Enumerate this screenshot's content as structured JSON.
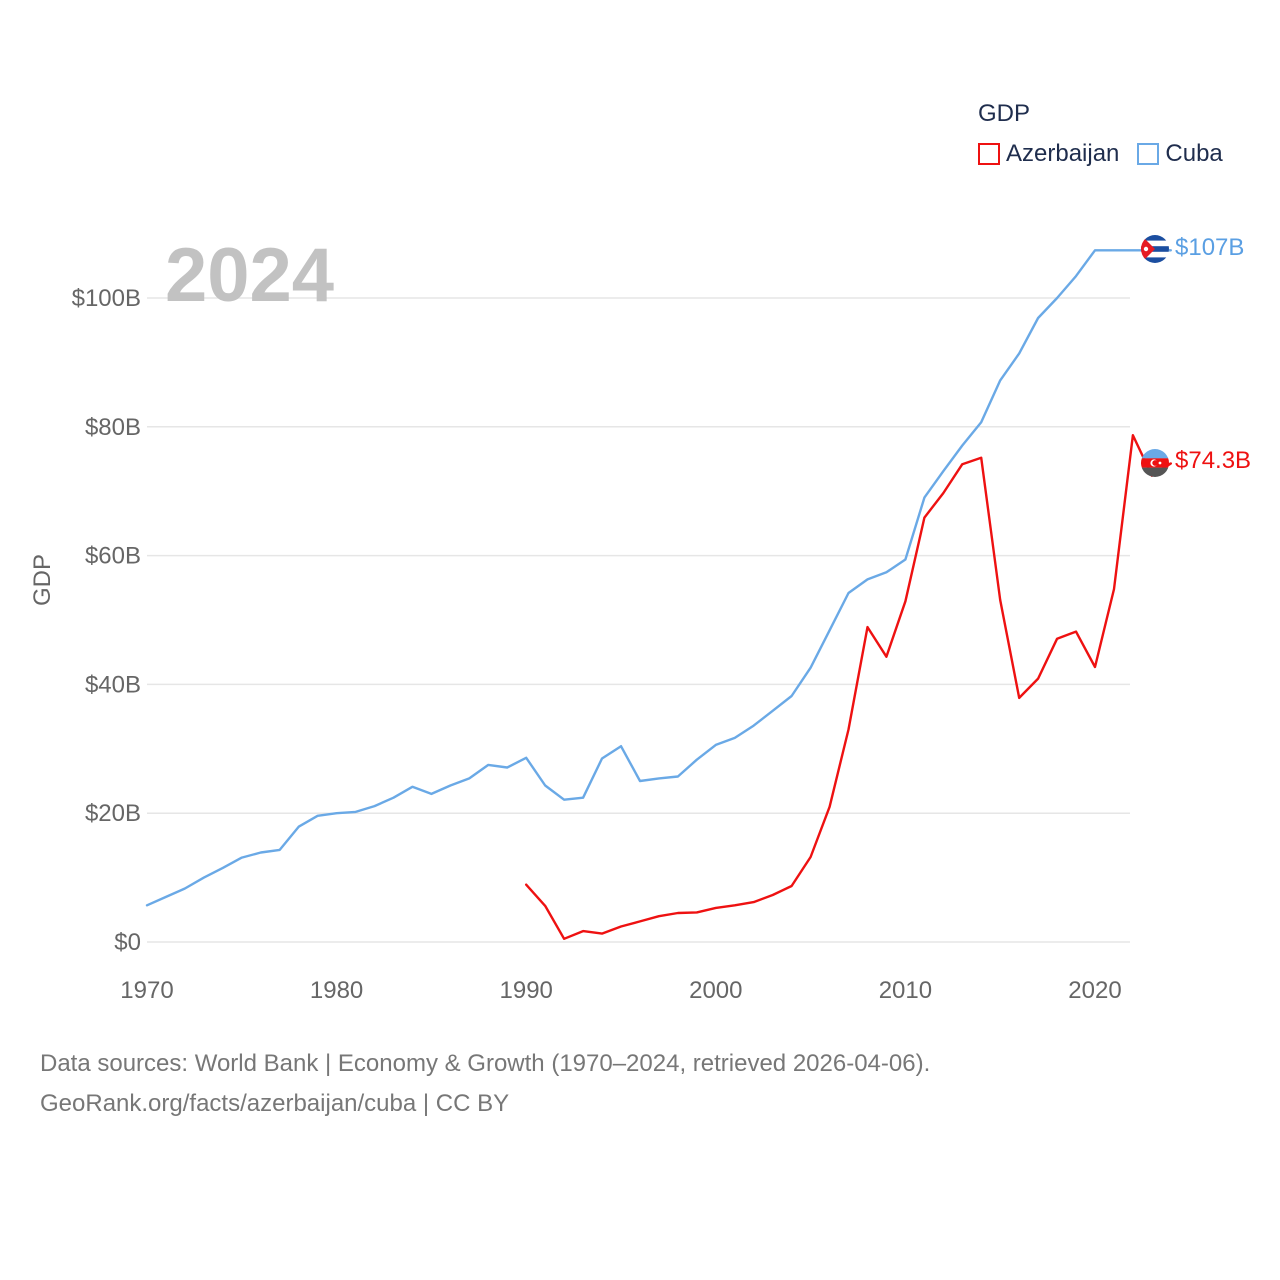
{
  "year_label": "2024",
  "legend": {
    "title": "GDP",
    "items": [
      {
        "name": "Azerbaijan",
        "color": "#ee1111"
      },
      {
        "name": "Cuba",
        "color": "#6aa9e6"
      }
    ]
  },
  "end_labels": {
    "cuba": "$107B",
    "azerbaijan": "$74.3B"
  },
  "footer": {
    "line1": "Data sources: World Bank | Economy & Growth (1970–2024, retrieved 2026-04-06).",
    "line2": "GeoRank.org/facts/azerbaijan/cuba | CC BY"
  },
  "chart_data": {
    "type": "line",
    "title": "",
    "xlabel": "",
    "ylabel": "GDP",
    "xlim": [
      1970,
      2024
    ],
    "ylim": [
      0,
      110
    ],
    "x_ticks": [
      1970,
      1980,
      1990,
      2000,
      2010,
      2020
    ],
    "y_ticks": [
      {
        "value": 0,
        "label": "$0"
      },
      {
        "value": 20,
        "label": "$20B"
      },
      {
        "value": 40,
        "label": "$40B"
      },
      {
        "value": 60,
        "label": "$60B"
      },
      {
        "value": 80,
        "label": "$80B"
      },
      {
        "value": 100,
        "label": "$100B"
      }
    ],
    "grid": true,
    "series": [
      {
        "name": "Cuba",
        "color": "#6aa9e6",
        "x": [
          1970,
          1971,
          1972,
          1973,
          1974,
          1975,
          1976,
          1977,
          1978,
          1979,
          1980,
          1981,
          1982,
          1983,
          1984,
          1985,
          1986,
          1987,
          1988,
          1989,
          1990,
          1991,
          1992,
          1993,
          1994,
          1995,
          1996,
          1997,
          1998,
          1999,
          2000,
          2001,
          2002,
          2003,
          2004,
          2005,
          2006,
          2007,
          2008,
          2009,
          2010,
          2011,
          2012,
          2013,
          2014,
          2015,
          2016,
          2017,
          2018,
          2019,
          2020,
          2021,
          2022,
          2023,
          2024
        ],
        "values": [
          5.7,
          7.0,
          8.3,
          10.0,
          11.5,
          13.1,
          13.9,
          14.3,
          17.9,
          19.6,
          20.0,
          20.2,
          21.1,
          22.4,
          24.1,
          23.0,
          24.3,
          25.4,
          27.5,
          27.1,
          28.6,
          24.3,
          22.1,
          22.4,
          28.5,
          30.4,
          25.0,
          25.4,
          25.7,
          28.3,
          30.6,
          31.7,
          33.6,
          35.9,
          38.2,
          42.6,
          48.4,
          54.2,
          56.3,
          57.4,
          59.4,
          69.0,
          73.1,
          77.1,
          80.7,
          87.2,
          91.4,
          96.9,
          100.0,
          103.4,
          107.4,
          107.4,
          107.4,
          107.4,
          107.4
        ]
      },
      {
        "name": "Azerbaijan",
        "color": "#ee1111",
        "x": [
          1990,
          1991,
          1992,
          1993,
          1994,
          1995,
          1996,
          1997,
          1998,
          1999,
          2000,
          2001,
          2002,
          2003,
          2004,
          2005,
          2006,
          2007,
          2008,
          2009,
          2010,
          2011,
          2012,
          2013,
          2014,
          2015,
          2016,
          2017,
          2018,
          2019,
          2020,
          2021,
          2022,
          2023,
          2024
        ],
        "values": [
          8.9,
          5.6,
          0.5,
          1.7,
          1.3,
          2.4,
          3.2,
          4.0,
          4.5,
          4.6,
          5.3,
          5.7,
          6.2,
          7.3,
          8.7,
          13.2,
          21.0,
          33.0,
          48.9,
          44.3,
          52.9,
          65.9,
          69.7,
          74.2,
          75.2,
          53.1,
          37.9,
          40.9,
          47.1,
          48.2,
          42.7,
          54.8,
          78.7,
          72.4,
          74.3
        ]
      }
    ]
  }
}
